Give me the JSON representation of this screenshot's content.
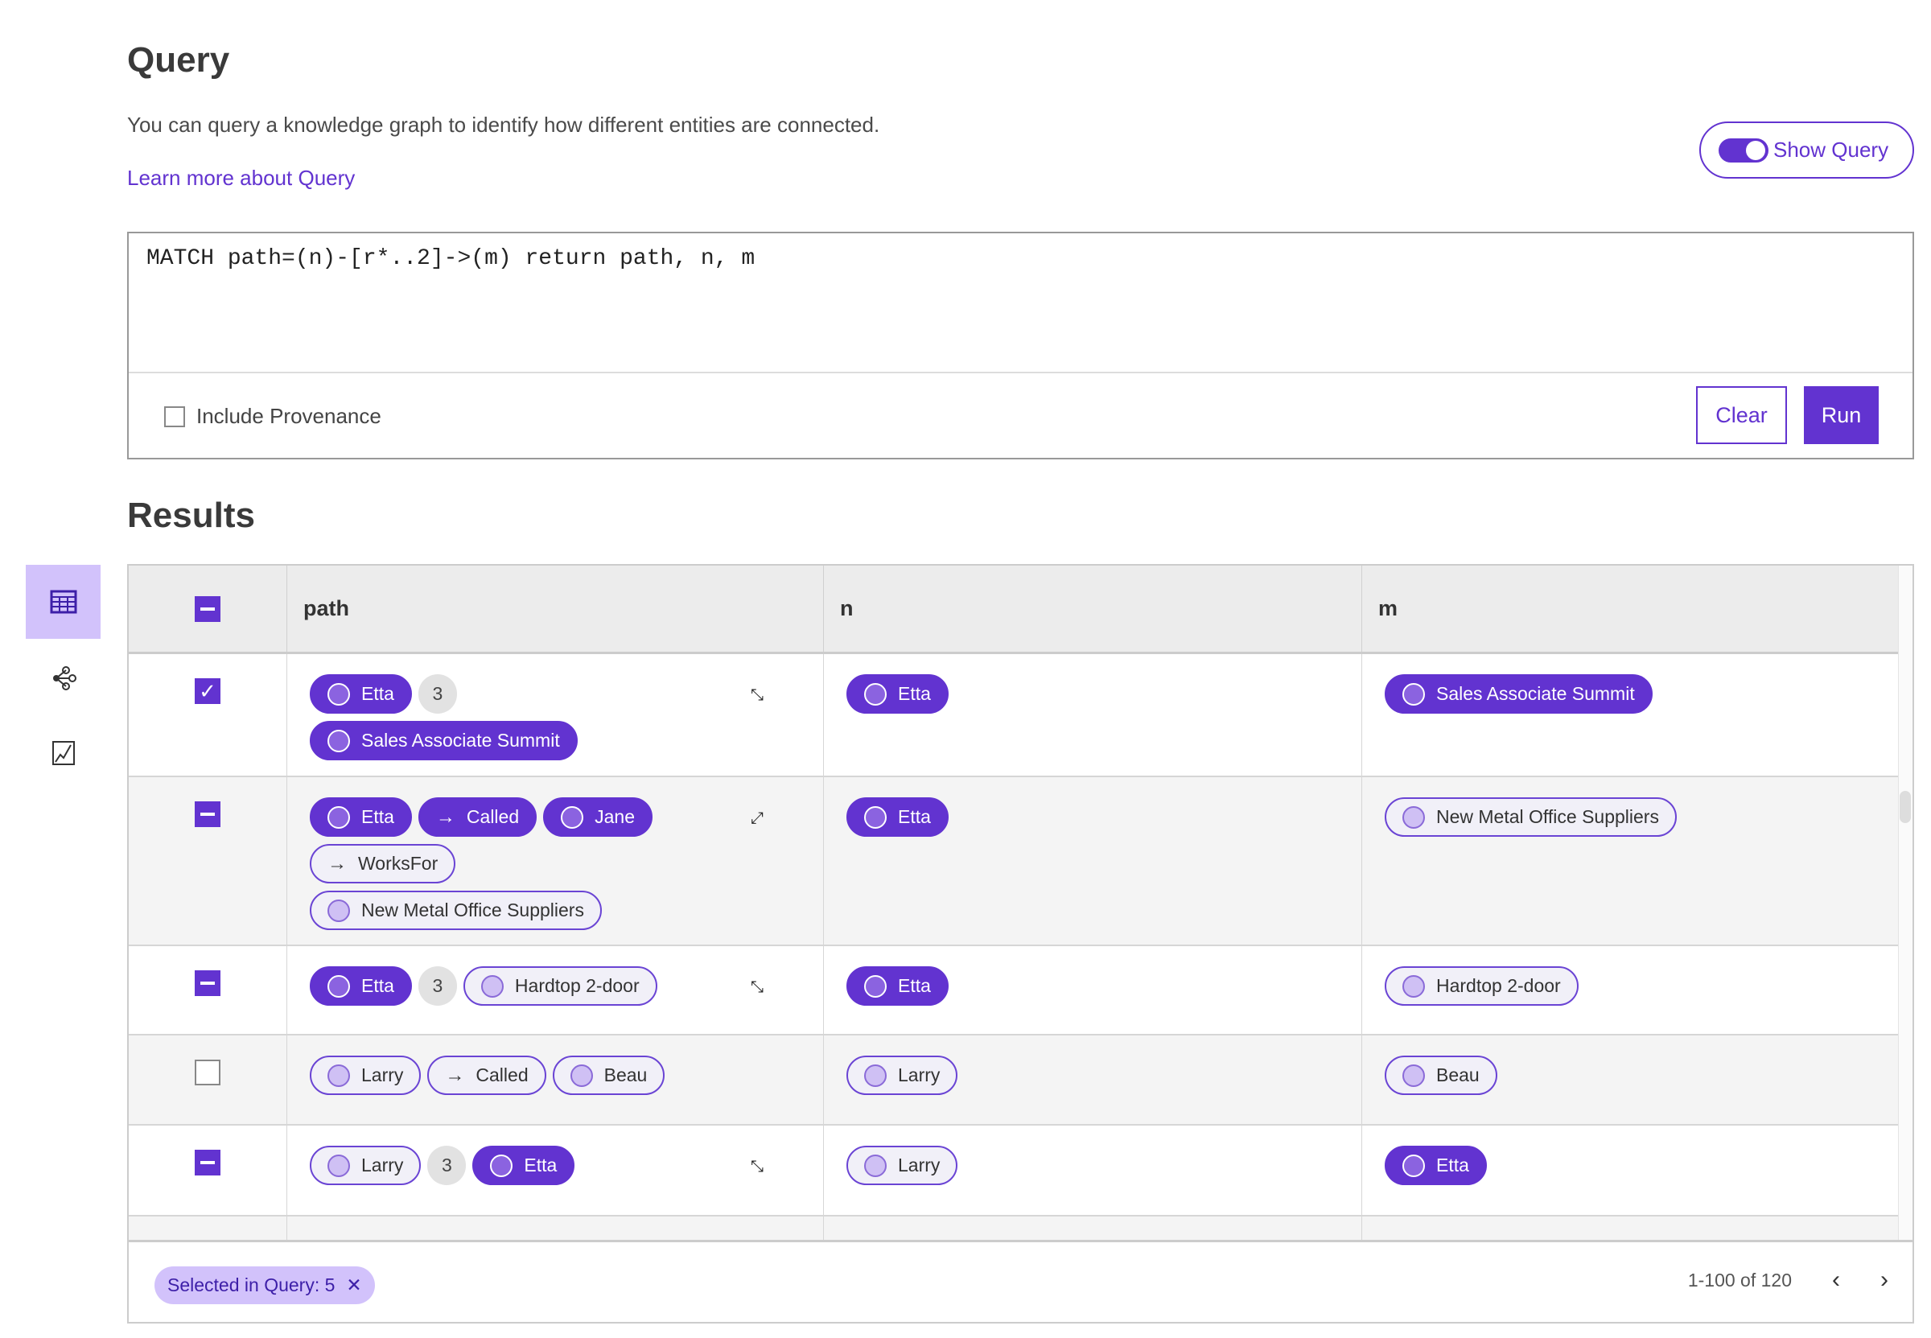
{
  "header": {
    "title": "Query",
    "description": "You can query a knowledge graph to identify how different entities are connected.",
    "learn_more": "Learn more about Query",
    "show_query": "Show Query",
    "show_query_on": true
  },
  "query": {
    "text": "MATCH path=(n)-[r*..2]->(m) return path, n, m",
    "include_provenance": "Include Provenance",
    "include_provenance_checked": false,
    "clear": "Clear",
    "run": "Run"
  },
  "results": {
    "title": "Results",
    "sidebar": [
      {
        "icon": "table-icon",
        "active": true
      },
      {
        "icon": "graph-icon",
        "active": false
      },
      {
        "icon": "chart-icon",
        "active": false
      }
    ],
    "columns": [
      "path",
      "n",
      "m"
    ],
    "header_select_state": "indeterminate",
    "rows": [
      {
        "select": "checked",
        "path": [
          [
            {
              "t": "node",
              "s": "f",
              "label": "Etta"
            },
            {
              "t": "count",
              "label": "3"
            }
          ],
          [
            {
              "t": "node",
              "s": "f",
              "label": "Sales Associate Summit"
            }
          ]
        ],
        "expand": "expand-icon",
        "n": {
          "s": "f",
          "label": "Etta"
        },
        "m": {
          "s": "f",
          "label": "Sales Associate Summit"
        }
      },
      {
        "select": "indeterminate",
        "path": [
          [
            {
              "t": "node",
              "s": "f",
              "label": "Etta"
            },
            {
              "t": "edge",
              "s": "f",
              "label": "Called"
            },
            {
              "t": "node",
              "s": "f",
              "label": "Jane"
            }
          ],
          [
            {
              "t": "edge",
              "s": "o",
              "label": "WorksFor"
            }
          ],
          [
            {
              "t": "node",
              "s": "o",
              "label": "New Metal Office Suppliers"
            }
          ]
        ],
        "expand": "collapse-icon",
        "n": {
          "s": "f",
          "label": "Etta"
        },
        "m": {
          "s": "o",
          "label": "New Metal Office Suppliers"
        }
      },
      {
        "select": "indeterminate",
        "path": [
          [
            {
              "t": "node",
              "s": "f",
              "label": "Etta"
            },
            {
              "t": "count",
              "label": "3"
            },
            {
              "t": "node",
              "s": "o",
              "label": "Hardtop 2-door"
            }
          ]
        ],
        "expand": "expand-icon",
        "n": {
          "s": "f",
          "label": "Etta"
        },
        "m": {
          "s": "o",
          "label": "Hardtop 2-door"
        }
      },
      {
        "select": "unchecked",
        "path": [
          [
            {
              "t": "node",
              "s": "o",
              "label": "Larry"
            },
            {
              "t": "edge",
              "s": "o",
              "label": "Called"
            },
            {
              "t": "node",
              "s": "o",
              "label": "Beau"
            }
          ]
        ],
        "expand": null,
        "n": {
          "s": "o",
          "label": "Larry"
        },
        "m": {
          "s": "o",
          "label": "Beau"
        }
      },
      {
        "select": "indeterminate",
        "path": [
          [
            {
              "t": "node",
              "s": "o",
              "label": "Larry"
            },
            {
              "t": "count",
              "label": "3"
            },
            {
              "t": "node",
              "s": "f",
              "label": "Etta"
            }
          ]
        ],
        "expand": "expand-icon",
        "n": {
          "s": "o",
          "label": "Larry"
        },
        "m": {
          "s": "f",
          "label": "Etta"
        }
      }
    ],
    "footer": {
      "selected_chip": "Selected in Query: 5",
      "pagination": "1-100 of 120"
    }
  },
  "colors": {
    "accent": "#6233d0",
    "accent_light": "#d2c2fb"
  }
}
